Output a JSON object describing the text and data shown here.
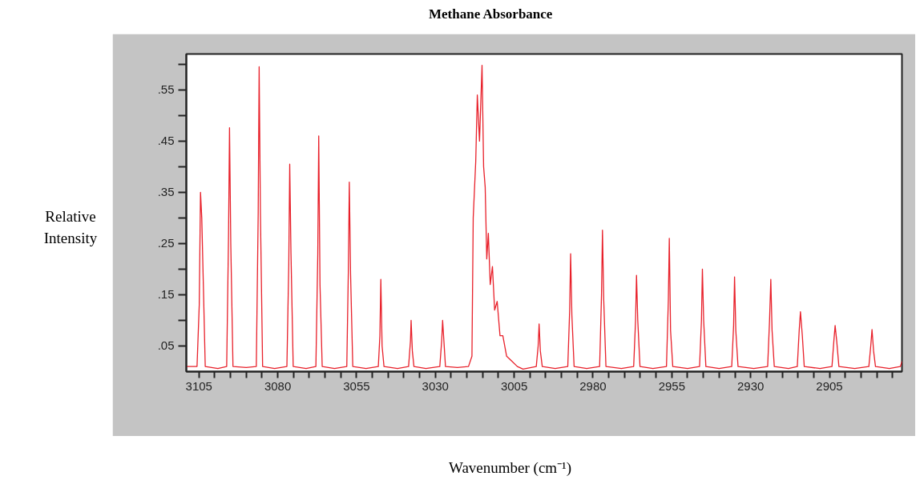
{
  "chart_data": {
    "type": "line",
    "title": "Methane Absorbance",
    "xlabel": "Wavenumber (cm⁻¹)",
    "ylabel": "Relative Intensity",
    "xlim": [
      3109,
      2882
    ],
    "ylim": [
      0,
      0.62
    ],
    "xticks": [
      3105,
      {
        "value": 3100,
        "label": null
      },
      {
        "value": 3095,
        "label": null
      },
      {
        "value": 3090,
        "label": null
      },
      {
        "value": 3085,
        "label": null
      },
      3080,
      {
        "value": 3075,
        "label": null
      },
      {
        "value": 3070,
        "label": null
      },
      {
        "value": 3065,
        "label": null
      },
      {
        "value": 3060,
        "label": null
      },
      3055,
      {
        "value": 3050,
        "label": null
      },
      {
        "value": 3045,
        "label": null
      },
      {
        "value": 3040,
        "label": null
      },
      {
        "value": 3035,
        "label": null
      },
      3030,
      {
        "value": 3025,
        "label": null
      },
      {
        "value": 3020,
        "label": null
      },
      {
        "value": 3015,
        "label": null
      },
      {
        "value": 3010,
        "label": null
      },
      3005,
      {
        "value": 3000,
        "label": null
      },
      {
        "value": 2995,
        "label": null
      },
      {
        "value": 2990,
        "label": null
      },
      {
        "value": 2985,
        "label": null
      },
      2980,
      {
        "value": 2975,
        "label": null
      },
      {
        "value": 2970,
        "label": null
      },
      {
        "value": 2965,
        "label": null
      },
      {
        "value": 2960,
        "label": null
      },
      2955,
      {
        "value": 2950,
        "label": null
      },
      {
        "value": 2945,
        "label": null
      },
      {
        "value": 2940,
        "label": null
      },
      {
        "value": 2935,
        "label": null
      },
      2930,
      {
        "value": 2925,
        "label": null
      },
      {
        "value": 2920,
        "label": null
      },
      {
        "value": 2915,
        "label": null
      },
      {
        "value": 2910,
        "label": null
      },
      2905,
      {
        "value": 2900,
        "label": null
      },
      {
        "value": 2895,
        "label": null
      },
      {
        "value": 2890,
        "label": null
      },
      {
        "value": 2885,
        "label": null
      }
    ],
    "yticks": [
      {
        "value": 0.05,
        "label": ".05"
      },
      {
        "value": 0.1,
        "label": null
      },
      {
        "value": 0.15,
        "label": ".15"
      },
      {
        "value": 0.2,
        "label": null
      },
      {
        "value": 0.25,
        "label": ".25"
      },
      {
        "value": 0.3,
        "label": null
      },
      {
        "value": 0.35,
        "label": ".35"
      },
      {
        "value": 0.4,
        "label": null
      },
      {
        "value": 0.45,
        "label": ".45"
      },
      {
        "value": 0.5,
        "label": null
      },
      {
        "value": 0.55,
        "label": ".55"
      },
      {
        "value": 0.6,
        "label": null
      }
    ],
    "grid": false,
    "series": [
      {
        "color": "#e8202a",
        "x": [
          3109,
          3105.6,
          3104.9,
          3104.5,
          3104.1,
          3103.6,
          3103.0,
          3099,
          3096.2,
          3095.6,
          3095.3,
          3094.9,
          3094.2,
          3090,
          3086.8,
          3086.2,
          3085.9,
          3085.5,
          3084.8,
          3081,
          3077.1,
          3076.5,
          3076.2,
          3075.8,
          3075.1,
          3071,
          3067.9,
          3067.3,
          3067.0,
          3066.6,
          3065.9,
          3062,
          3058.1,
          3057.6,
          3057.3,
          3056.9,
          3056.2,
          3052,
          3048.1,
          3047.6,
          3047.3,
          3046.9,
          3046.3,
          3042,
          3038.5,
          3037.9,
          3037.7,
          3037.3,
          3036.8,
          3033,
          3028.6,
          3028.0,
          3027.7,
          3027.3,
          3026.8,
          3023,
          3019.5,
          3018.4,
          3018.0,
          3017.2,
          3016.7,
          3016.0,
          3015.2,
          3014.7,
          3014.2,
          3013.7,
          3013.2,
          3012.6,
          3011.9,
          3011.2,
          3010.4,
          3009.5,
          3008.6,
          3007.4,
          3006.0,
          3004.0,
          3002.2,
          2998.0,
          2997.4,
          2997.1,
          2996.7,
          2996.1,
          2992,
          2988.0,
          2987.4,
          2987.1,
          2986.7,
          2986.0,
          2982,
          2977.9,
          2977.3,
          2977.0,
          2976.6,
          2975.9,
          2971,
          2967.1,
          2966.5,
          2966.2,
          2965.8,
          2965.1,
          2961,
          2956.7,
          2956.1,
          2955.8,
          2955.4,
          2954.7,
          2950,
          2946.2,
          2945.6,
          2945.3,
          2944.9,
          2944.2,
          2940,
          2936.0,
          2935.4,
          2935.1,
          2934.7,
          2934.0,
          2929,
          2924.6,
          2924.0,
          2923.6,
          2923.2,
          2922.5,
          2918,
          2915.2,
          2914.6,
          2914.2,
          2913.6,
          2913.0,
          2908,
          2904.2,
          2903.6,
          2903.2,
          2902.7,
          2902.0,
          2897,
          2892.5,
          2891.9,
          2891.5,
          2891.0,
          2890.4,
          2886,
          2882.5,
          2882
        ],
        "values": [
          0.01,
          0.01,
          0.13,
          0.35,
          0.3,
          0.17,
          0.01,
          0.006,
          0.01,
          0.27,
          0.476,
          0.25,
          0.01,
          0.008,
          0.01,
          0.31,
          0.595,
          0.31,
          0.01,
          0.006,
          0.01,
          0.21,
          0.405,
          0.23,
          0.01,
          0.006,
          0.01,
          0.23,
          0.46,
          0.17,
          0.01,
          0.006,
          0.01,
          0.2,
          0.37,
          0.19,
          0.01,
          0.006,
          0.01,
          0.07,
          0.18,
          0.05,
          0.01,
          0.006,
          0.01,
          0.06,
          0.1,
          0.04,
          0.01,
          0.006,
          0.01,
          0.06,
          0.1,
          0.06,
          0.01,
          0.008,
          0.01,
          0.03,
          0.3,
          0.41,
          0.54,
          0.45,
          0.598,
          0.4,
          0.36,
          0.22,
          0.27,
          0.17,
          0.205,
          0.12,
          0.137,
          0.07,
          0.07,
          0.03,
          0.022,
          0.01,
          0.005,
          0.01,
          0.05,
          0.093,
          0.04,
          0.01,
          0.006,
          0.01,
          0.12,
          0.23,
          0.11,
          0.01,
          0.006,
          0.01,
          0.15,
          0.276,
          0.14,
          0.01,
          0.006,
          0.01,
          0.1,
          0.188,
          0.1,
          0.01,
          0.006,
          0.01,
          0.14,
          0.26,
          0.08,
          0.01,
          0.006,
          0.01,
          0.1,
          0.2,
          0.1,
          0.01,
          0.006,
          0.01,
          0.09,
          0.185,
          0.08,
          0.01,
          0.006,
          0.01,
          0.1,
          0.18,
          0.08,
          0.01,
          0.006,
          0.01,
          0.08,
          0.117,
          0.07,
          0.01,
          0.006,
          0.01,
          0.06,
          0.09,
          0.06,
          0.01,
          0.006,
          0.01,
          0.05,
          0.082,
          0.04,
          0.01,
          0.006,
          0.01,
          0.02
        ]
      }
    ]
  }
}
